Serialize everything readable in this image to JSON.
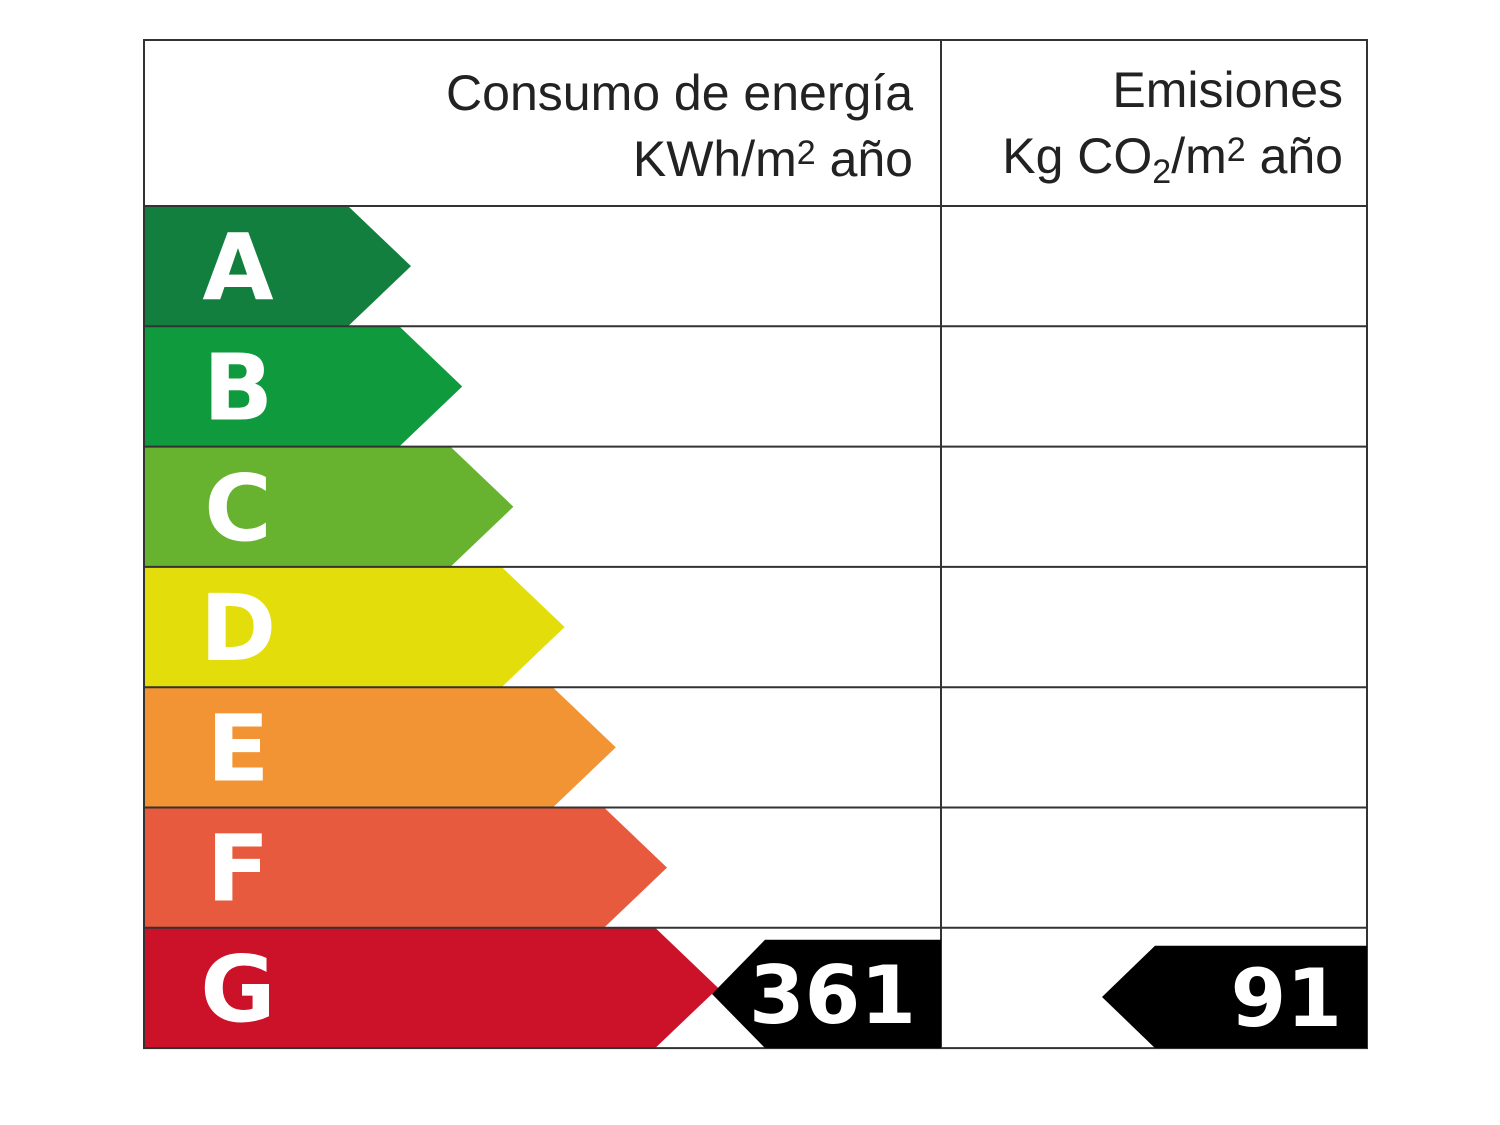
{
  "header": {
    "energy": {
      "title": "Consumo de energía",
      "unit": [
        "KWh/m",
        "2",
        " año"
      ]
    },
    "emissions": {
      "title": "Emisiones",
      "unit": [
        "Kg CO",
        "2",
        "/m",
        "2",
        " año"
      ]
    }
  },
  "grades": [
    {
      "letter": "A",
      "color": "#137f3e"
    },
    {
      "letter": "B",
      "color": "#0f9a3e"
    },
    {
      "letter": "C",
      "color": "#67b22f"
    },
    {
      "letter": "D",
      "color": "#e3dd0c"
    },
    {
      "letter": "E",
      "color": "#f29433"
    },
    {
      "letter": "F",
      "color": "#e75a3e"
    },
    {
      "letter": "G",
      "color": "#cc1228"
    }
  ],
  "rating": {
    "energy": {
      "grade": "G",
      "value": 361
    },
    "emissions": {
      "grade": "G",
      "value": 91
    }
  }
}
